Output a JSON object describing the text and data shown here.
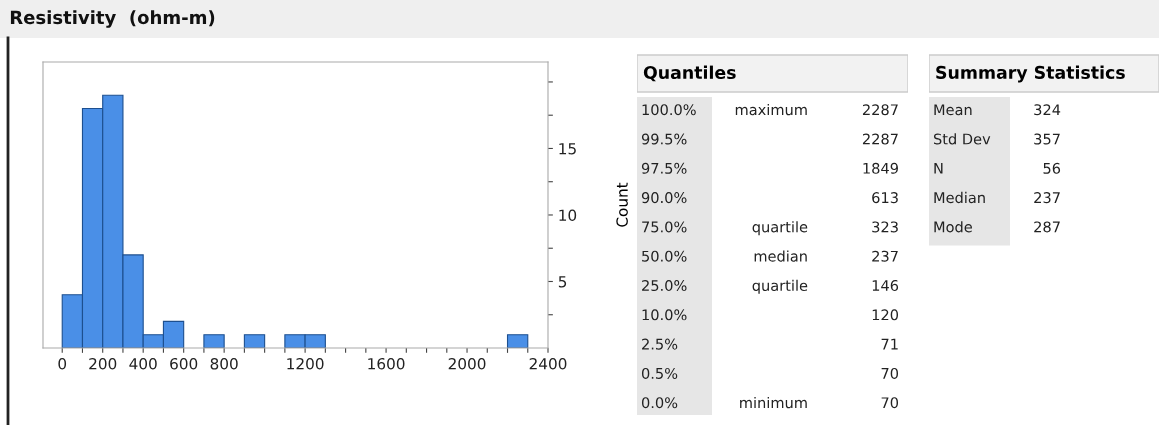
{
  "chart_data": [
    {
      "type": "histogram",
      "title": "Resistivity  (ohm-m)",
      "ylabel": "Count",
      "color": "#4a8fe7",
      "bins": [
        0,
        100,
        200,
        300,
        400,
        500,
        600,
        700,
        800,
        900,
        1000,
        1100,
        1200,
        1300,
        1400,
        1500,
        1600,
        1700,
        1800,
        1900,
        2000,
        2100,
        2200,
        2300
      ],
      "values": [
        4,
        18,
        19,
        7,
        1,
        2,
        0,
        1,
        0,
        1,
        0,
        1,
        1,
        0,
        0,
        0,
        0,
        0,
        0,
        0,
        0,
        0,
        1
      ],
      "xlim": [
        -95,
        2400
      ],
      "ylim": [
        0,
        21.5
      ],
      "xticks": [
        0,
        {
          "value": 100,
          "label": null
        },
        200,
        {
          "value": 300,
          "label": null
        },
        400,
        {
          "value": 500,
          "label": null
        },
        600,
        {
          "value": 700,
          "label": null
        },
        800,
        {
          "value": 900,
          "label": null
        },
        {
          "value": 1000,
          "label": null
        },
        {
          "value": 1100,
          "label": null
        },
        1200,
        {
          "value": 1300,
          "label": null
        },
        {
          "value": 1400,
          "label": null
        },
        {
          "value": 1500,
          "label": null
        },
        1600,
        {
          "value": 1700,
          "label": null
        },
        {
          "value": 1800,
          "label": null
        },
        {
          "value": 1900,
          "label": null
        },
        2000,
        {
          "value": 2100,
          "label": null
        },
        {
          "value": 2200,
          "label": null
        },
        {
          "value": 2300,
          "label": null
        },
        2400
      ],
      "yticks": [
        {
          "value": 2.5,
          "label": null
        },
        5,
        {
          "value": 7.5,
          "label": null
        },
        10,
        {
          "value": 12.5,
          "label": null
        },
        15,
        {
          "value": 17.5,
          "label": null
        },
        {
          "value": 20,
          "label": null
        }
      ],
      "grid": false,
      "legend": false
    },
    {
      "type": "other",
      "title": "Quantiles",
      "categories": [
        "100.0%",
        "99.5%",
        "97.5%",
        "90.0%",
        "75.0%",
        "50.0%",
        "25.0%",
        "10.0%",
        "2.5%",
        "0.5%",
        "0.0%"
      ],
      "y_categories": [
        "maximum",
        null,
        null,
        null,
        "quartile",
        "median",
        "quartile",
        null,
        null,
        null,
        "minimum"
      ],
      "values": [
        2287,
        2287,
        1849,
        613,
        323,
        237,
        146,
        120,
        71,
        70,
        70
      ],
      "data_labels": true
    },
    {
      "type": "other",
      "title": "Summary Statistics",
      "categories": [
        "Mean",
        "Std Dev",
        "N",
        "Median",
        "Mode"
      ],
      "values": [
        324,
        357,
        56,
        237,
        287
      ],
      "data_labels": true
    }
  ]
}
